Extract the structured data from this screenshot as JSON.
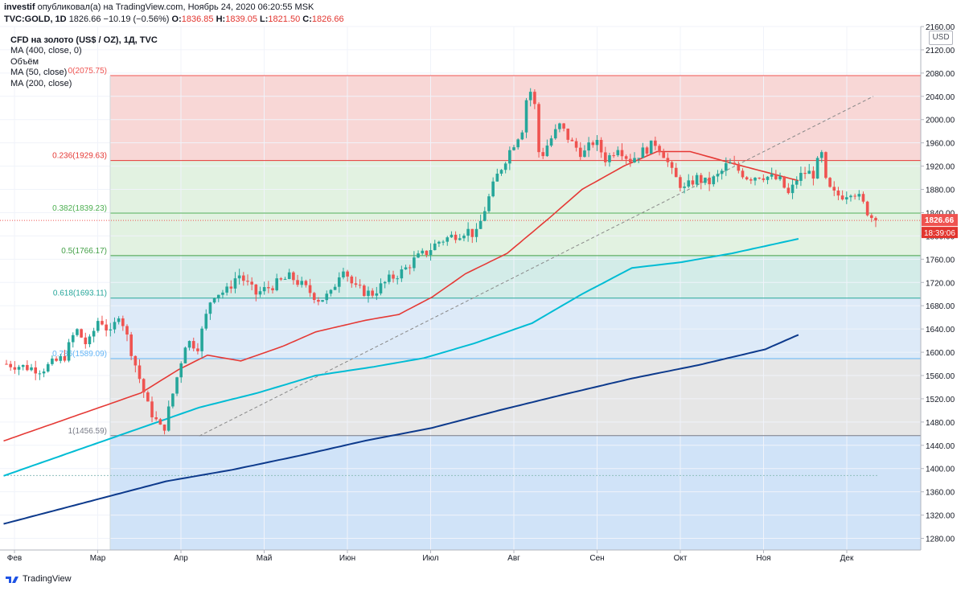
{
  "header": {
    "author": "investif",
    "published_text": "опубликовал(а) на TradingView.com, Ноябрь 24, 2020 06:20:55 MSK",
    "symbol": "TVC:GOLD, 1D",
    "last": "1826.66",
    "change": "−10.19 (−0.56%)",
    "o_label": "O:",
    "o": "1836.85",
    "h_label": "H:",
    "h": "1839.05",
    "l_label": "L:",
    "l": "1821.50",
    "c_label": "C:",
    "c": "1826.66"
  },
  "legend": [
    "CFD на золото (US$ / OZ), 1Д, TVC",
    "MA (400, close, 0)",
    "Объём",
    "MA (50, close)",
    "MA (200, close)"
  ],
  "currency_label": "USD",
  "footer_brand": "TradingView",
  "colors": {
    "up": "#26a69a",
    "down": "#ef5350",
    "ma50": "#e53935",
    "ma200": "#00bcd4",
    "ma400": "#0d3a8c",
    "trend": "#888888",
    "fib_red": "#f8d7d6",
    "fib_green": "#e2f2e1",
    "fib_teal": "#d3ece8",
    "fib_blue": "#ddeaf8",
    "fib_gray": "#e6e6e6"
  },
  "chart_data": {
    "type": "candlestick",
    "title": "CFD на золото (US$ / OZ), 1Д, TVC",
    "ylim": [
      1260,
      2160
    ],
    "y_ticks": [
      1280,
      1320,
      1360,
      1400,
      1440,
      1480,
      1520,
      1560,
      1600,
      1640,
      1680,
      1720,
      1760,
      1800,
      1840,
      1880,
      1920,
      1960,
      2000,
      2040,
      2080,
      2120,
      2160
    ],
    "x_labels": [
      "Фев",
      "Мар",
      "Апр",
      "Май",
      "Июн",
      "Июл",
      "Авг",
      "Сен",
      "Окт",
      "Ноя",
      "Дек"
    ],
    "last_price": "1826.66",
    "countdown": "18:39:06",
    "fib_levels": [
      {
        "ratio": "0",
        "value": 2075.75,
        "label": "0(2075.75)"
      },
      {
        "ratio": "0.236",
        "value": 1929.63,
        "label": "0.236(1929.63)"
      },
      {
        "ratio": "0.382",
        "value": 1839.23,
        "label": "0.382(1839.23)"
      },
      {
        "ratio": "0.5",
        "value": 1766.17,
        "label": "0.5(1766.17)"
      },
      {
        "ratio": "0.618",
        "value": 1693.11,
        "label": "0.618(1693.11)"
      },
      {
        "ratio": "0.786",
        "value": 1589.09,
        "label": "0.786(1589.09)"
      },
      {
        "ratio": "1",
        "value": 1456.59,
        "label": "1(1456.59)"
      }
    ],
    "ma50_key": [
      [
        1.0,
        1505
      ],
      [
        1.5,
        1530
      ],
      [
        1.95,
        1570
      ],
      [
        2.3,
        1595
      ],
      [
        2.7,
        1585
      ],
      [
        3.2,
        1610
      ],
      [
        3.6,
        1635
      ],
      [
        4.2,
        1655
      ],
      [
        4.6,
        1665
      ],
      [
        5.0,
        1695
      ],
      [
        5.4,
        1735
      ],
      [
        5.9,
        1770
      ],
      [
        6.4,
        1830
      ],
      [
        6.8,
        1880
      ],
      [
        7.3,
        1920
      ],
      [
        7.7,
        1945
      ],
      [
        8.1,
        1945
      ],
      [
        8.6,
        1925
      ],
      [
        9.0,
        1910
      ],
      [
        9.4,
        1895
      ]
    ],
    "ma200_key": [
      [
        1.0,
        1445
      ],
      [
        1.6,
        1475
      ],
      [
        2.2,
        1505
      ],
      [
        2.9,
        1530
      ],
      [
        3.6,
        1560
      ],
      [
        4.3,
        1575
      ],
      [
        4.9,
        1590
      ],
      [
        5.5,
        1615
      ],
      [
        6.2,
        1650
      ],
      [
        6.8,
        1700
      ],
      [
        7.4,
        1745
      ],
      [
        8.0,
        1755
      ],
      [
        8.6,
        1770
      ],
      [
        9.4,
        1795
      ]
    ],
    "ma400_key": [
      [
        1.0,
        1348
      ],
      [
        1.8,
        1378
      ],
      [
        2.6,
        1398
      ],
      [
        3.4,
        1422
      ],
      [
        4.2,
        1448
      ],
      [
        5.0,
        1470
      ],
      [
        5.8,
        1500
      ],
      [
        6.6,
        1528
      ],
      [
        7.4,
        1555
      ],
      [
        8.2,
        1578
      ],
      [
        9.0,
        1605
      ],
      [
        9.4,
        1630
      ]
    ],
    "trend_line": [
      [
        2.2,
        1456
      ],
      [
        10.3,
        2040
      ]
    ],
    "dotted_level": 1388,
    "candle_key": [
      [
        1.0,
        1580
      ],
      [
        1.3,
        1575
      ],
      [
        1.6,
        1570
      ],
      [
        2.0,
        1592
      ],
      [
        2.2,
        1640
      ],
      [
        2.4,
        1610
      ],
      [
        2.6,
        1660
      ],
      [
        2.8,
        1630
      ],
      [
        2.95,
        1670
      ],
      [
        3.1,
        1620
      ],
      [
        3.25,
        1570
      ],
      [
        3.45,
        1505
      ],
      [
        3.7,
        1462
      ],
      [
        3.95,
        1560
      ],
      [
        4.1,
        1620
      ],
      [
        4.3,
        1610
      ],
      [
        4.55,
        1700
      ],
      [
        4.8,
        1705
      ],
      [
        5.0,
        1735
      ],
      [
        5.3,
        1700
      ],
      [
        5.6,
        1715
      ],
      [
        5.9,
        1730
      ],
      [
        6.1,
        1715
      ],
      [
        6.4,
        1690
      ],
      [
        6.6,
        1700
      ],
      [
        6.8,
        1750
      ],
      [
        7.0,
        1710
      ],
      [
        7.3,
        1700
      ],
      [
        7.6,
        1725
      ],
      [
        7.85,
        1740
      ],
      [
        8.05,
        1760
      ],
      [
        8.25,
        1772
      ],
      [
        8.45,
        1790
      ],
      [
        8.7,
        1800
      ],
      [
        8.95,
        1810
      ],
      [
        9.1,
        1800
      ],
      [
        9.25,
        1845
      ],
      [
        9.45,
        1900
      ],
      [
        9.7,
        1950
      ],
      [
        9.9,
        1985
      ],
      [
        10.0,
        2055
      ],
      [
        10.1,
        2040
      ],
      [
        10.2,
        1930
      ],
      [
        10.35,
        1960
      ],
      [
        10.55,
        1990
      ],
      [
        10.75,
        1960
      ],
      [
        10.95,
        1940
      ],
      [
        11.15,
        1965
      ],
      [
        11.35,
        1930
      ],
      [
        11.55,
        1955
      ],
      [
        11.75,
        1930
      ],
      [
        11.9,
        1940
      ],
      [
        12.05,
        1950
      ],
      [
        12.2,
        1960
      ],
      [
        12.35,
        1940
      ],
      [
        12.5,
        1905
      ],
      [
        12.7,
        1880
      ],
      [
        12.9,
        1900
      ],
      [
        13.1,
        1890
      ],
      [
        13.3,
        1905
      ],
      [
        13.45,
        1925
      ],
      [
        13.6,
        1915
      ],
      [
        13.8,
        1900
      ],
      [
        14.0,
        1905
      ],
      [
        14.2,
        1900
      ],
      [
        14.35,
        1895
      ],
      [
        14.5,
        1870
      ],
      [
        14.65,
        1900
      ],
      [
        14.8,
        1910
      ],
      [
        14.95,
        1905
      ],
      [
        15.05,
        1950
      ],
      [
        15.15,
        1885
      ],
      [
        15.3,
        1870
      ],
      [
        15.45,
        1870
      ],
      [
        15.6,
        1880
      ],
      [
        15.75,
        1860
      ],
      [
        15.9,
        1835
      ],
      [
        16.0,
        1827
      ]
    ],
    "candle_count": 210
  }
}
